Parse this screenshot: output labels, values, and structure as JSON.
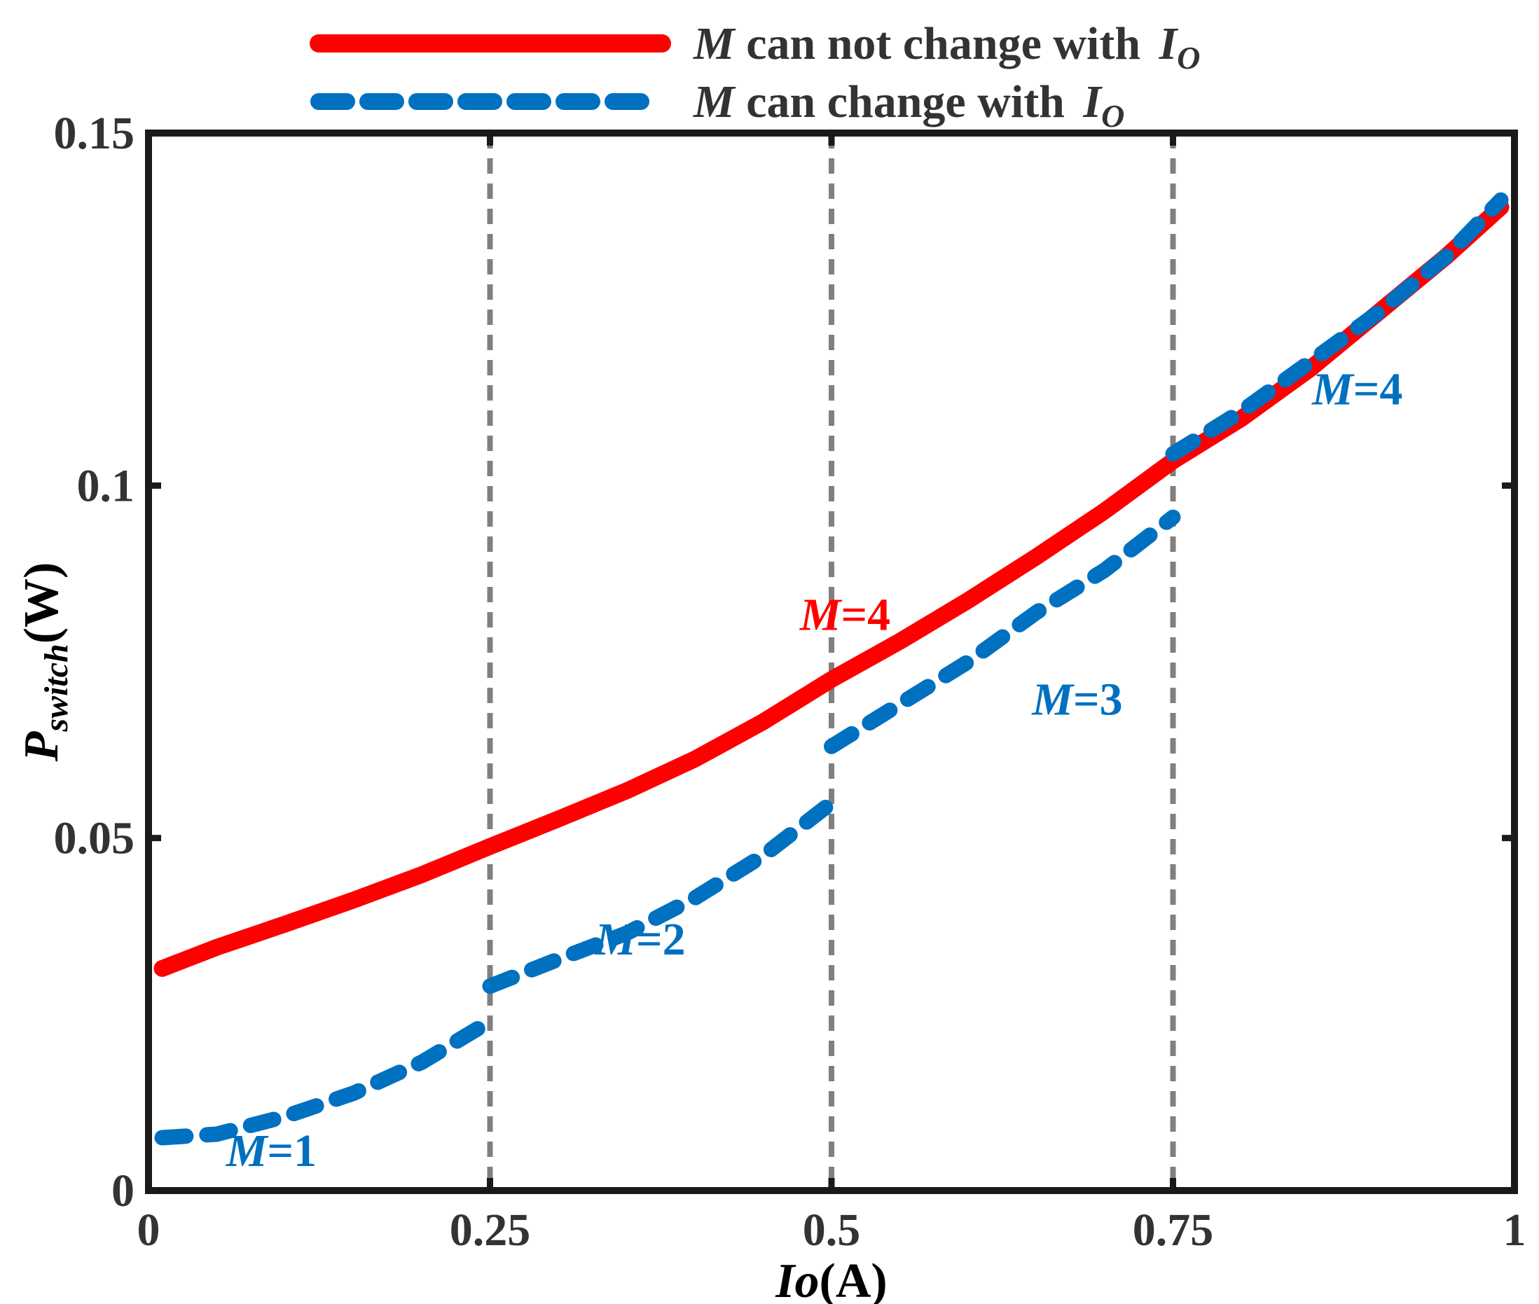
{
  "chart_data": {
    "type": "line",
    "xlabel": {
      "italic": "Io",
      "unit": "(A)"
    },
    "ylabel": {
      "base": "P",
      "sub": "switch",
      "unit": "(W)"
    },
    "xlim": [
      0,
      1
    ],
    "ylim": [
      0,
      0.15
    ],
    "x_ticks": [
      {
        "value": 0,
        "label": "0"
      },
      {
        "value": 0.25,
        "label": "0.25"
      },
      {
        "value": 0.5,
        "label": "0.5"
      },
      {
        "value": 0.75,
        "label": "0.75"
      },
      {
        "value": 1,
        "label": "1"
      }
    ],
    "y_ticks": [
      {
        "value": 0,
        "label": "0"
      },
      {
        "value": 0.05,
        "label": "0.05"
      },
      {
        "value": 0.1,
        "label": "0.1"
      },
      {
        "value": 0.15,
        "label": "0.15"
      }
    ],
    "vertical_reference_lines": [
      0.25,
      0.5,
      0.75
    ],
    "legend": {
      "position": "top",
      "entries": [
        {
          "series": 0,
          "m": "M",
          "text": " can not change with ",
          "io": "I",
          "io_sub": "O"
        },
        {
          "series": 1,
          "m": "M",
          "text": " can change with ",
          "io": "I",
          "io_sub": "O"
        }
      ]
    },
    "series": [
      {
        "name": "M can not change with IO",
        "color": "#ff0000",
        "style": "solid",
        "segments": [
          {
            "x": [
              0.01,
              0.05,
              0.1,
              0.15,
              0.2,
              0.25,
              0.3,
              0.35,
              0.4,
              0.45,
              0.5,
              0.55,
              0.6,
              0.65,
              0.7,
              0.75,
              0.8,
              0.85,
              0.9,
              0.95,
              0.99
            ],
            "y": [
              0.0315,
              0.0345,
              0.0378,
              0.0412,
              0.0448,
              0.0488,
              0.0527,
              0.0567,
              0.0612,
              0.0665,
              0.0725,
              0.0779,
              0.0837,
              0.0899,
              0.0964,
              0.1035,
              0.1095,
              0.1165,
              0.1245,
              0.1325,
              0.1395
            ]
          }
        ]
      },
      {
        "name": "M can change with IO",
        "color": "#0070c0",
        "style": "dashed",
        "segments": [
          {
            "x": [
              0.01,
              0.05,
              0.1,
              0.15,
              0.2,
              0.25
            ],
            "y": [
              0.0075,
              0.008,
              0.0105,
              0.0138,
              0.0182,
              0.024
            ]
          },
          {
            "x": [
              0.25,
              0.3,
              0.35,
              0.4,
              0.45,
              0.5
            ],
            "y": [
              0.029,
              0.0328,
              0.0365,
              0.0415,
              0.0475,
              0.055
            ]
          },
          {
            "x": [
              0.5,
              0.55,
              0.6,
              0.65,
              0.7,
              0.75
            ],
            "y": [
              0.063,
              0.069,
              0.075,
              0.082,
              0.088,
              0.0955
            ]
          },
          {
            "x": [
              0.75,
              0.8,
              0.85,
              0.9,
              0.95,
              0.99
            ],
            "y": [
              0.1045,
              0.1105,
              0.1175,
              0.1245,
              0.1325,
              0.1405
            ]
          }
        ]
      }
    ],
    "annotations": [
      {
        "text_m": "M",
        "text_rest": "=1",
        "x": 0.09,
        "y": 0.0035,
        "color": "#0070c0"
      },
      {
        "text_m": "M",
        "text_rest": "=2",
        "x": 0.36,
        "y": 0.0335,
        "color": "#0070c0"
      },
      {
        "text_m": "M",
        "text_rest": "=3",
        "x": 0.68,
        "y": 0.0675,
        "color": "#0070c0"
      },
      {
        "text_m": "M",
        "text_rest": "=4",
        "x": 0.885,
        "y": 0.1115,
        "color": "#0070c0"
      },
      {
        "text_m": "M",
        "text_rest": "=4",
        "x": 0.51,
        "y": 0.0795,
        "color": "#ff0000"
      }
    ]
  }
}
